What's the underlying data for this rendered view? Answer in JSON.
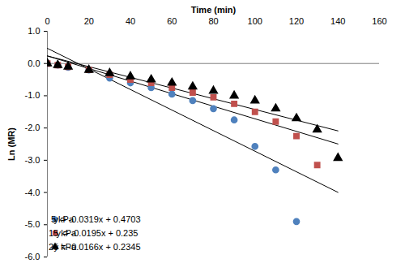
{
  "chart_data": {
    "type": "scatter",
    "xlabel": "Time (min)",
    "ylabel": "Ln (MR)",
    "xlim": [
      0,
      160
    ],
    "xticks": [
      0,
      20,
      40,
      60,
      80,
      100,
      120,
      140,
      160
    ],
    "ylim": [
      -6,
      1
    ],
    "yticks": [
      {
        "value": 1,
        "label": "1.0"
      },
      {
        "value": 0,
        "label": "0.0"
      },
      {
        "value": -1,
        "label": "-1.0"
      },
      {
        "value": -2,
        "label": "-2.0"
      },
      {
        "value": -3,
        "label": "-3.0"
      },
      {
        "value": -4,
        "label": "-4.0"
      },
      {
        "value": -5,
        "label": "-5.0"
      },
      {
        "value": -6,
        "label": "-6.0"
      }
    ],
    "grid": false,
    "legend": "bottom-left",
    "series": [
      {
        "name": "5 kPa",
        "color": "#4f81bd",
        "marker": "circle",
        "equation": "y = -0.0319x + 0.4703",
        "x": [
          0,
          5,
          10,
          20,
          30,
          40,
          50,
          60,
          70,
          80,
          90,
          100,
          110,
          120
        ],
        "values": [
          0,
          -0.05,
          -0.12,
          -0.2,
          -0.45,
          -0.6,
          -0.75,
          -0.95,
          -1.15,
          -1.4,
          -1.75,
          -2.57,
          -3.3,
          -4.9
        ],
        "trendline": {
          "slope": -0.0319,
          "intercept": 0.4703,
          "x": [
            0,
            140
          ]
        }
      },
      {
        "name": "15 kPa",
        "color": "#c0504d",
        "marker": "square",
        "equation": "y = -0.0195x + 0.235",
        "x": [
          0,
          5,
          10,
          20,
          30,
          40,
          50,
          60,
          70,
          80,
          90,
          100,
          110,
          120,
          130
        ],
        "values": [
          0,
          -0.05,
          -0.1,
          -0.2,
          -0.35,
          -0.5,
          -0.6,
          -0.75,
          -0.9,
          -1.05,
          -1.25,
          -1.5,
          -1.8,
          -2.25,
          -3.15
        ],
        "trendline": {
          "slope": -0.0195,
          "intercept": 0.235,
          "x": [
            0,
            140
          ]
        }
      },
      {
        "name": "25 kPa",
        "color": "#000000",
        "marker": "triangle",
        "equation": "y = -0.0166x + 0.2345",
        "x": [
          0,
          5,
          10,
          20,
          30,
          40,
          50,
          60,
          70,
          80,
          90,
          100,
          110,
          120,
          130,
          140
        ],
        "values": [
          0,
          -0.05,
          -0.1,
          -0.2,
          -0.3,
          -0.4,
          -0.5,
          -0.6,
          -0.72,
          -0.85,
          -1.0,
          -1.15,
          -1.4,
          -1.7,
          -2.05,
          -2.93
        ],
        "trendline": {
          "slope": -0.0166,
          "intercept": 0.2345,
          "x": [
            0,
            140
          ]
        }
      }
    ]
  }
}
